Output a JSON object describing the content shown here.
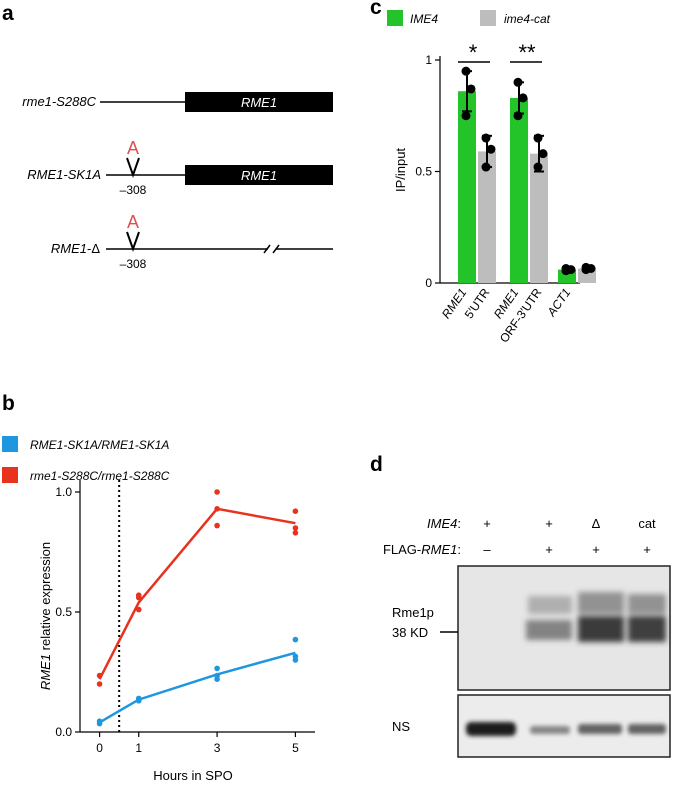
{
  "panel_a": {
    "label": "a",
    "rows": [
      {
        "name": "rme1-S288C",
        "box": "RME1"
      },
      {
        "name": "RME1-SK1A",
        "box": "RME1",
        "mark": "A",
        "pos": "–308"
      },
      {
        "name_it": "RME1",
        "name_rest": "-Δ",
        "mark": "A",
        "pos": "–308"
      }
    ]
  },
  "panel_b": {
    "label": "b",
    "legend": [
      {
        "name": "RME1-SK1A/RME1-SK1A",
        "color": "#1e96e0"
      },
      {
        "name": "rme1-S288C/rme1-S288C",
        "color": "#e8321e"
      }
    ],
    "ylabel_it": "RME1",
    "ylabel_rest": " relative expression",
    "xlabel": "Hours in SPO",
    "yticks": [
      "0.0",
      "0.5",
      "1.0"
    ],
    "xticks": [
      "0",
      "1",
      "3",
      "5"
    ]
  },
  "panel_c": {
    "label": "c",
    "legend": [
      {
        "name": "IME4",
        "color": "#22c42a"
      },
      {
        "name": "ime4-cat",
        "color": "#bdbdbd"
      }
    ],
    "ylabel": "IP/input",
    "yticks": [
      "0",
      "0.5",
      "1"
    ],
    "categories": [
      {
        "it": "RME1",
        "rest": ""
      },
      {
        "it": "",
        "rest": "5′UTR"
      },
      {
        "it": "RME1",
        "rest": ""
      },
      {
        "it": "",
        "rest": "ORF-3′UTR"
      },
      {
        "it": "ACT1",
        "rest": ""
      }
    ],
    "sig": [
      "*",
      "**"
    ]
  },
  "panel_d": {
    "label": "d",
    "row1_label_it": "IME4",
    "row1_label_rest": ":",
    "row1_values": [
      "+",
      "+",
      "Δ",
      "cat"
    ],
    "row2_label_rest_pre": "FLAG-",
    "row2_label_it": "RME1",
    "row2_label_rest": ":",
    "row2_values": [
      "–",
      "+",
      "+",
      "+"
    ],
    "band_label_1": "Rme1p",
    "band_label_2": "38 KD",
    "ns_label": "NS"
  },
  "chart_data": [
    {
      "type": "line",
      "panel": "b",
      "xlabel": "Hours in SPO",
      "ylabel": "RME1 relative expression",
      "ylim": [
        0,
        1.05
      ],
      "x": [
        0,
        1,
        3,
        5
      ],
      "series": [
        {
          "name": "RME1-SK1A/RME1-SK1A",
          "color": "#1e96e0",
          "mean": [
            0.04,
            0.135,
            0.24,
            0.33
          ],
          "points": [
            [
              0,
              0.035
            ],
            [
              0,
              0.045
            ],
            [
              1,
              0.13
            ],
            [
              1,
              0.14
            ],
            [
              3,
              0.22
            ],
            [
              3,
              0.235
            ],
            [
              3,
              0.265
            ],
            [
              5,
              0.3
            ],
            [
              5,
              0.315
            ],
            [
              5,
              0.385
            ]
          ]
        },
        {
          "name": "rme1-S288C/rme1-S288C",
          "color": "#e8321e",
          "mean": [
            0.22,
            0.54,
            0.93,
            0.87
          ],
          "points": [
            [
              0,
              0.2
            ],
            [
              0,
              0.235
            ],
            [
              1,
              0.51
            ],
            [
              1,
              0.56
            ],
            [
              1,
              0.57
            ],
            [
              3,
              0.86
            ],
            [
              3,
              0.93
            ],
            [
              3,
              1.0
            ],
            [
              5,
              0.83
            ],
            [
              5,
              0.85
            ],
            [
              5,
              0.92
            ]
          ]
        }
      ],
      "vline_x": 0.5
    },
    {
      "type": "bar",
      "panel": "c",
      "ylabel": "IP/input",
      "ylim": [
        0,
        1.0
      ],
      "categories": [
        "RME1 5′UTR",
        "RME1 ORF-3′UTR",
        "ACT1"
      ],
      "series": [
        {
          "name": "IME4",
          "color": "#22c42a",
          "values": [
            0.86,
            0.83,
            0.06
          ],
          "err": [
            0.09,
            0.07,
            0.01
          ],
          "points": [
            [
              0.95,
              0.87,
              0.75
            ],
            [
              0.9,
              0.83,
              0.75
            ],
            [
              0.065,
              0.06,
              0.055
            ]
          ]
        },
        {
          "name": "ime4-cat",
          "color": "#bdbdbd",
          "values": [
            0.59,
            0.58,
            0.065
          ],
          "err": [
            0.07,
            0.08,
            0.01
          ],
          "points": [
            [
              0.65,
              0.6,
              0.52
            ],
            [
              0.65,
              0.58,
              0.52
            ],
            [
              0.07,
              0.065,
              0.06
            ]
          ]
        }
      ]
    }
  ]
}
